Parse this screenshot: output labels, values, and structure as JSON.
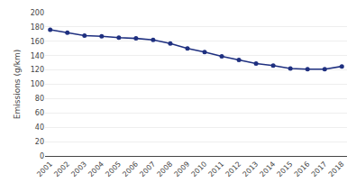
{
  "chart_data": {
    "type": "line",
    "ylabel": "Emissions (g/km)",
    "x": [
      2001,
      2002,
      2003,
      2004,
      2005,
      2006,
      2007,
      2008,
      2009,
      2010,
      2011,
      2012,
      2013,
      2014,
      2015,
      2016,
      2017,
      2018
    ],
    "values": [
      176,
      172,
      168,
      167,
      165,
      164,
      162,
      157,
      150,
      145,
      139,
      134,
      129,
      126,
      122,
      121,
      121,
      125
    ],
    "color": "#1f3080",
    "marker": "circle",
    "xlim": [
      2000.7,
      2018.3
    ],
    "xticks": [
      2001,
      2002,
      2003,
      2004,
      2005,
      2006,
      2007,
      2008,
      2009,
      2010,
      2011,
      2012,
      2013,
      2014,
      2015,
      2016,
      2017,
      2018
    ],
    "ylim": [
      0,
      200
    ],
    "yticks": [
      0,
      20,
      40,
      60,
      80,
      100,
      120,
      140,
      160,
      180,
      200
    ],
    "grid": true
  }
}
